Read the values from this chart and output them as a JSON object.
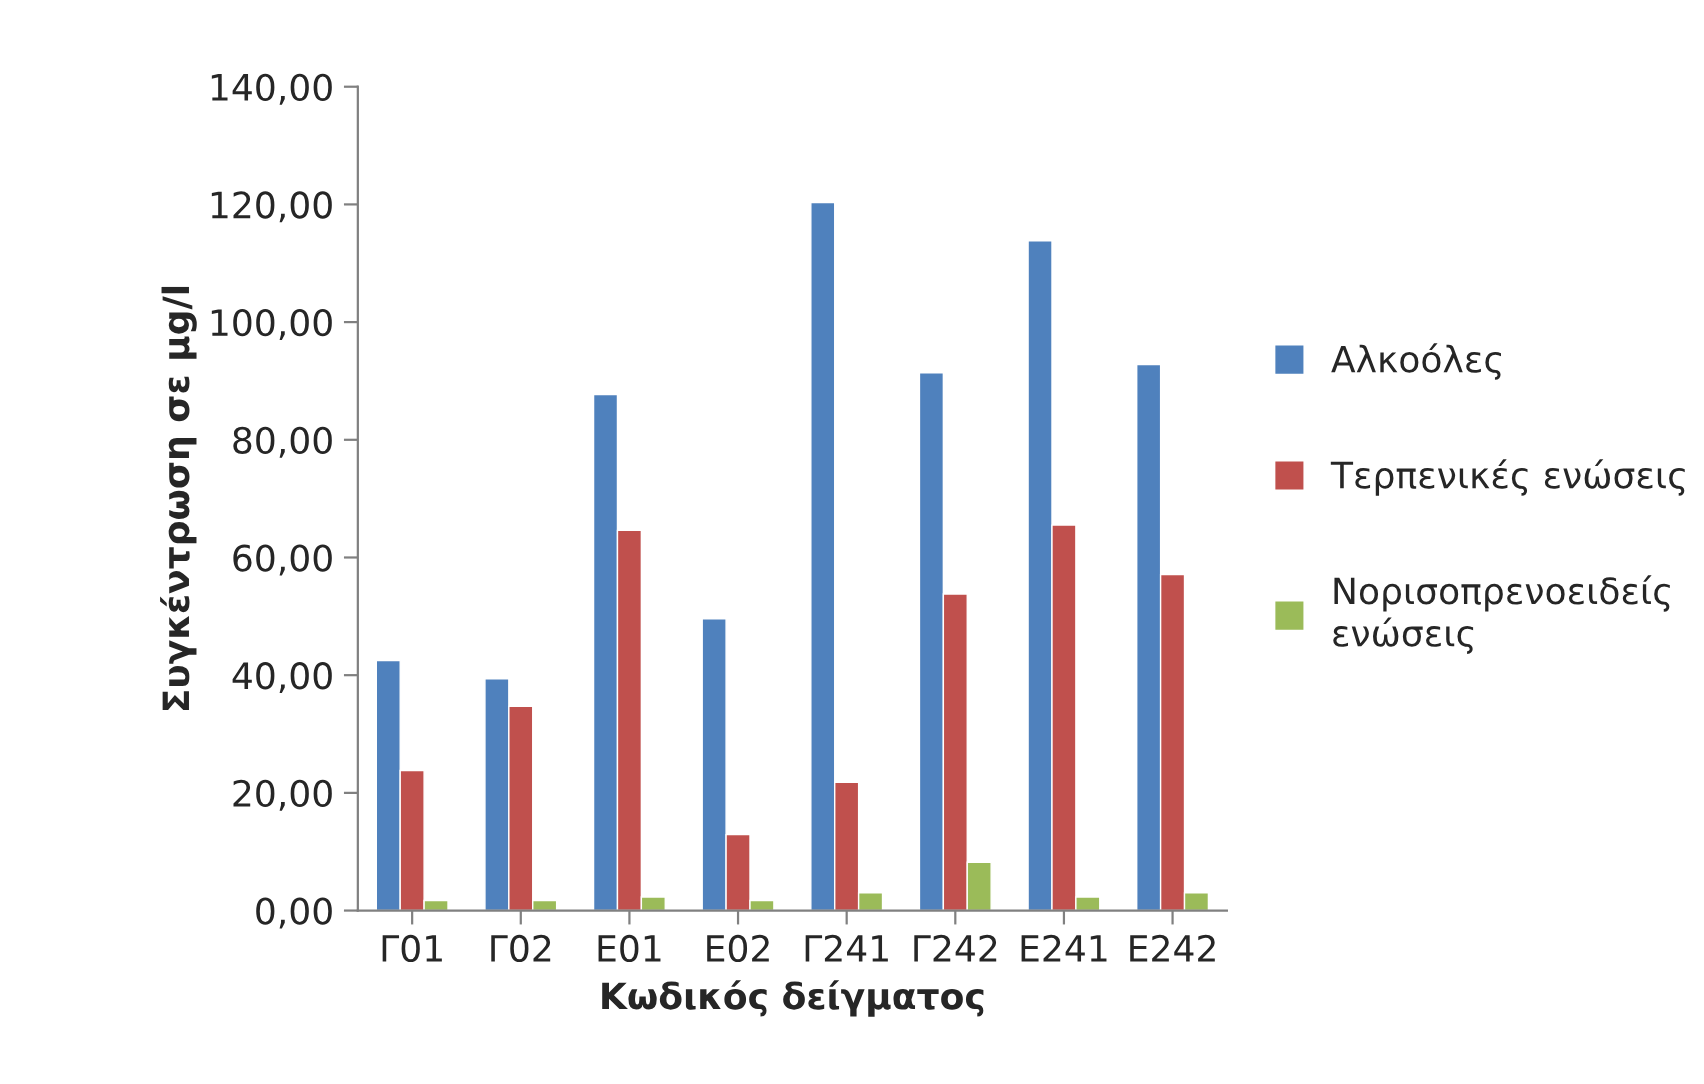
{
  "chart_data": {
    "type": "bar",
    "xlabel": "Κωδικός δείγματος",
    "ylabel": "Συγκέντρωση σε μg/l",
    "categories": [
      "Γ01",
      "Γ02",
      "Ε01",
      "Ε02",
      "Γ241",
      "Γ242",
      "Ε241",
      "Ε242"
    ],
    "series": [
      {
        "name": "Αλκοόλες",
        "color": "#4f81bd",
        "values": [
          42.5,
          39.4,
          87.7,
          49.6,
          120.3,
          91.4,
          113.8,
          92.8
        ]
      },
      {
        "name": "Τερπενικές ενώσεις",
        "color": "#c0504d",
        "values": [
          23.8,
          34.7,
          64.6,
          12.9,
          21.8,
          53.8,
          65.5,
          57.1
        ]
      },
      {
        "name": "Νορισοπρενοειδείς ενώσεις",
        "color": "#9bbb59",
        "values": [
          1.7,
          1.7,
          2.3,
          1.7,
          3.0,
          8.2,
          2.3,
          3.0
        ]
      }
    ],
    "ylim": [
      0,
      140
    ],
    "yticks": [
      {
        "value": 0,
        "label": "0,00"
      },
      {
        "value": 20,
        "label": "20,00"
      },
      {
        "value": 40,
        "label": "40,00"
      },
      {
        "value": 60,
        "label": "60,00"
      },
      {
        "value": 80,
        "label": "80,00"
      },
      {
        "value": 100,
        "label": "100,00"
      },
      {
        "value": 120,
        "label": "120,00"
      },
      {
        "value": 140,
        "label": "140,00"
      }
    ],
    "grid": false,
    "legend": "right"
  }
}
